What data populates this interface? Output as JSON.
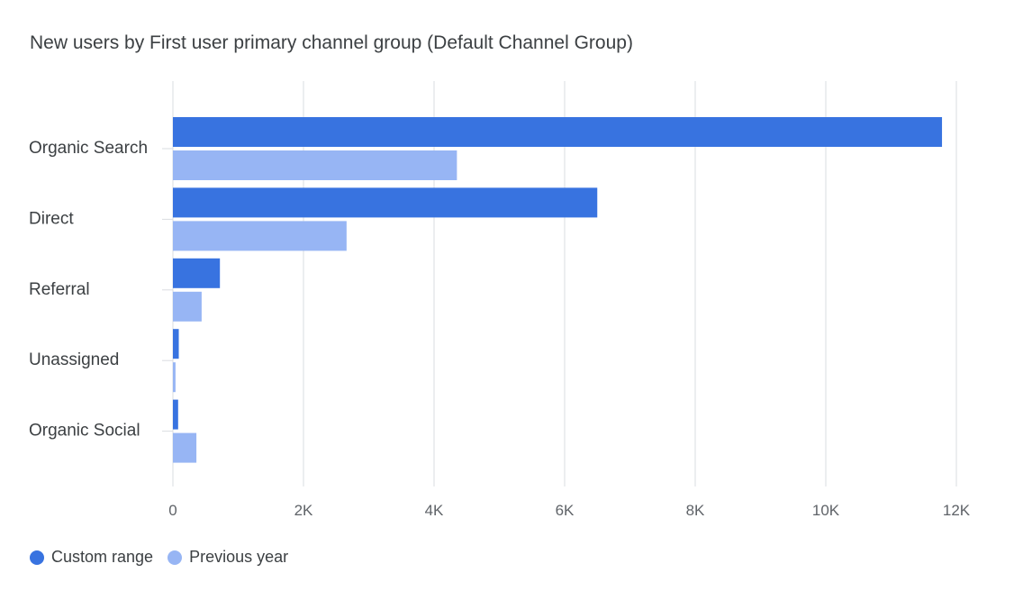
{
  "chart_data": {
    "type": "bar",
    "orientation": "horizontal",
    "title": "New users by First user primary channel group (Default Channel Group)",
    "categories": [
      "Organic Search",
      "Direct",
      "Referral",
      "Unassigned",
      "Organic Social"
    ],
    "series": [
      {
        "name": "Custom range",
        "color": "#3873e0",
        "values": [
          11780,
          6500,
          720,
          90,
          80
        ]
      },
      {
        "name": "Previous year",
        "color": "#97b5f4",
        "values": [
          4350,
          2660,
          440,
          40,
          360
        ]
      }
    ],
    "xlim": [
      0,
      12000
    ],
    "xticks": [
      0,
      2000,
      4000,
      6000,
      8000,
      10000,
      12000
    ],
    "xtick_labels": [
      "0",
      "2K",
      "4K",
      "6K",
      "8K",
      "10K",
      "12K"
    ],
    "grid": true,
    "legend_position": "bottom-left"
  }
}
